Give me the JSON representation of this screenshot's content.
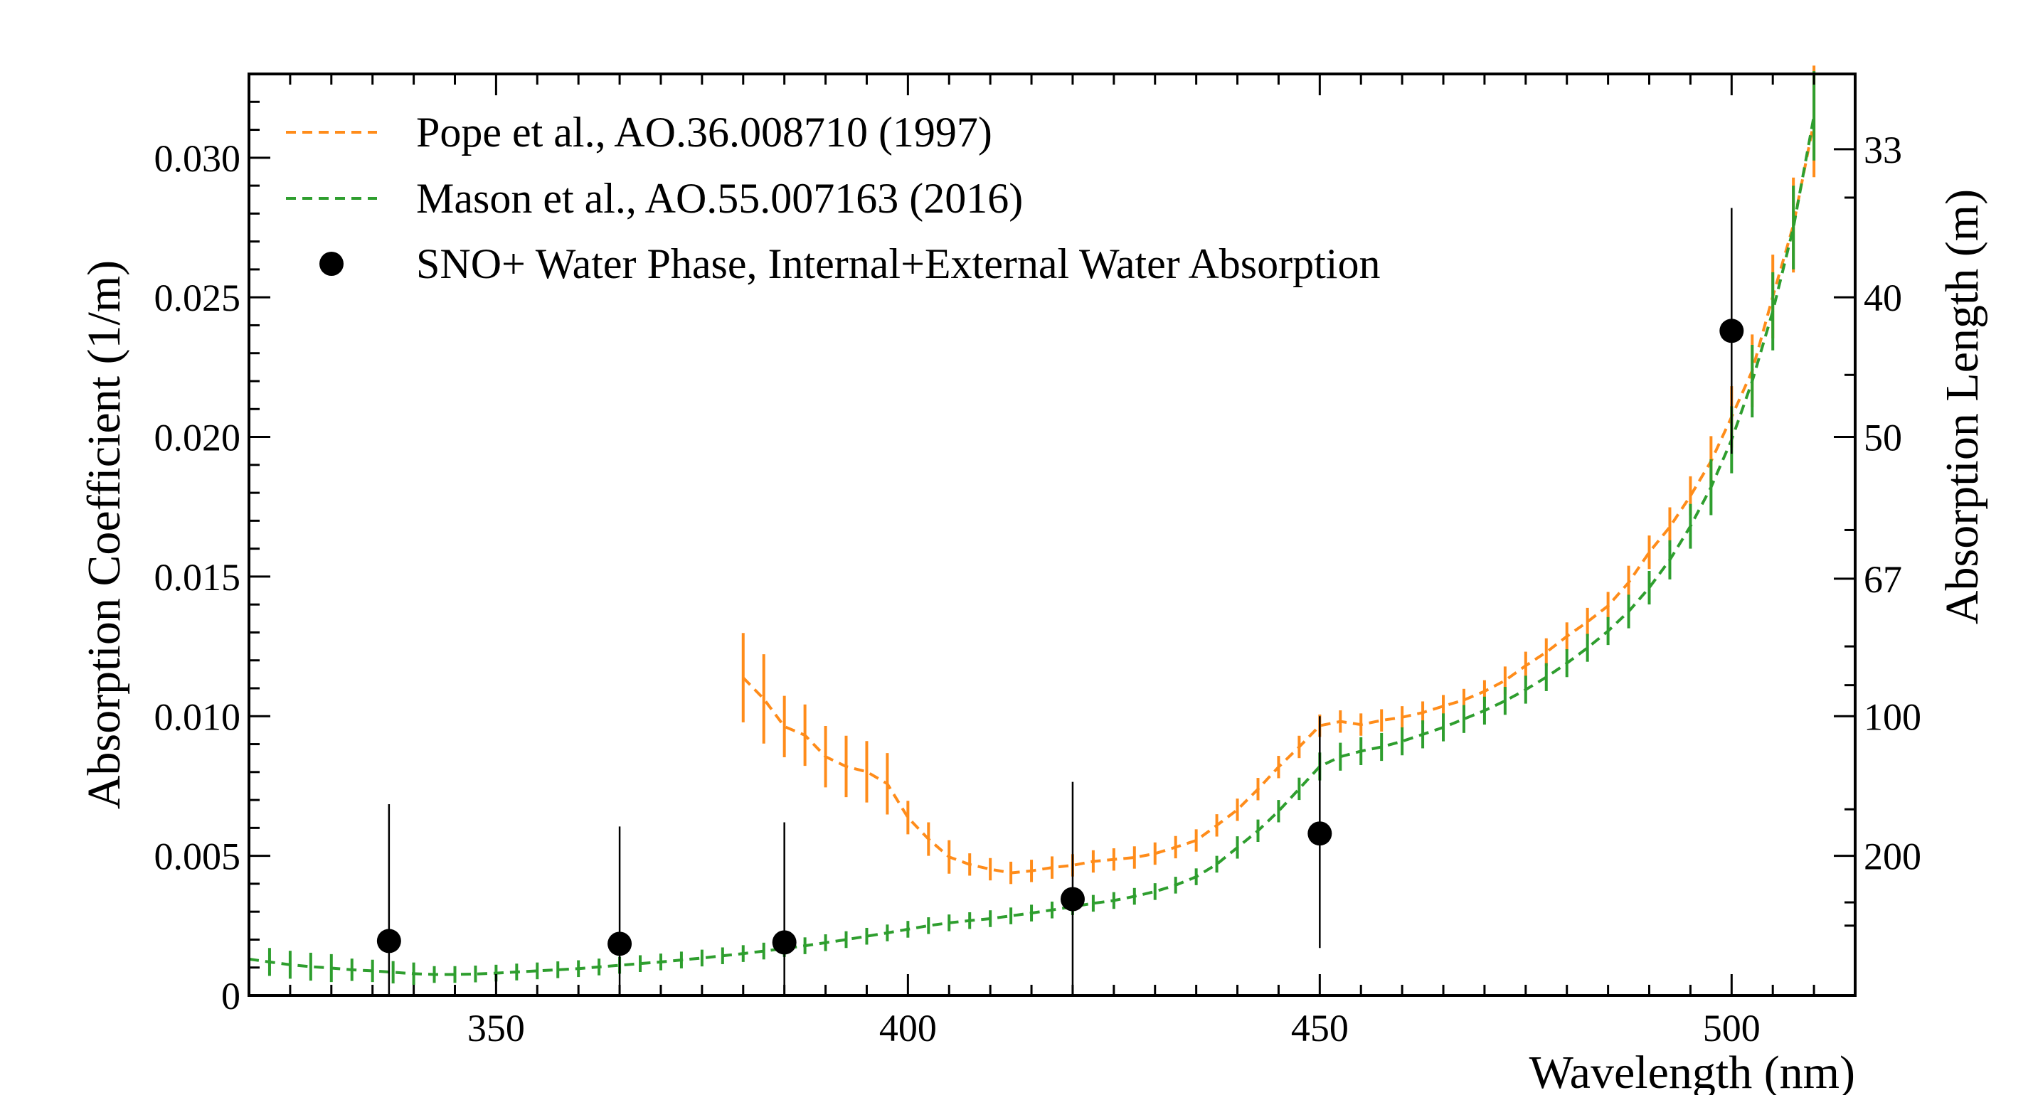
{
  "chart_data": {
    "type": "scatter",
    "xlabel": "Wavelength (nm)",
    "ylabel": "Absorption Coefficient (1/m)",
    "y2label": "Absorption Length (m)",
    "xlim": [
      320,
      515
    ],
    "ylim": [
      0,
      0.033
    ],
    "x_ticks": [
      "350",
      "400",
      "450",
      "500"
    ],
    "y_ticks": [
      "0",
      "0.005",
      "0.010",
      "0.015",
      "0.020",
      "0.025",
      "0.030"
    ],
    "y2_ticks": [
      "33",
      "40",
      "50",
      "67",
      "100",
      "200"
    ],
    "legend_position": "top-left",
    "series": [
      {
        "name": "Pope et al., AO.36.008710 (1997)",
        "style": "dashed-line-with-errorbars",
        "color": "#ff8c1a",
        "x": [
          380,
          382.5,
          385,
          387.5,
          390,
          392.5,
          395,
          397.5,
          400,
          402.5,
          405,
          407.5,
          410,
          412.5,
          415,
          417.5,
          420,
          422.5,
          425,
          427.5,
          430,
          432.5,
          435,
          437.5,
          440,
          442.5,
          445,
          447.5,
          450,
          452.5,
          455,
          457.5,
          460,
          462.5,
          465,
          467.5,
          470,
          472.5,
          475,
          477.5,
          480,
          482.5,
          485,
          487.5,
          490,
          492.5,
          495,
          497.5,
          500,
          502.5,
          505,
          507.5,
          510
        ],
        "y": [
          0.01138,
          0.01062,
          0.00963,
          0.00932,
          0.00855,
          0.0082,
          0.00801,
          0.00758,
          0.00637,
          0.0056,
          0.00496,
          0.00469,
          0.00452,
          0.00439,
          0.00446,
          0.00458,
          0.00466,
          0.0048,
          0.00487,
          0.00494,
          0.00508,
          0.00531,
          0.00555,
          0.00609,
          0.00665,
          0.00739,
          0.00818,
          0.0089,
          0.00966,
          0.00981,
          0.0097,
          0.00985,
          0.00996,
          0.01013,
          0.01036,
          0.01058,
          0.01089,
          0.01128,
          0.01181,
          0.01229,
          0.01286,
          0.01338,
          0.01395,
          0.01479,
          0.01587,
          0.01678,
          0.01789,
          0.01913,
          0.02072,
          0.02237,
          0.02503,
          0.02759,
          0.0313
        ],
        "err": [
          0.0016,
          0.0016,
          0.0011,
          0.0011,
          0.0011,
          0.0011,
          0.0011,
          0.0011,
          0.0006,
          0.0006,
          0.0006,
          0.0004,
          0.0004,
          0.0004,
          0.0004,
          0.0004,
          0.0004,
          0.0004,
          0.0004,
          0.0004,
          0.0004,
          0.0004,
          0.0004,
          0.0004,
          0.0004,
          0.0004,
          0.0004,
          0.0004,
          0.0004,
          0.0004,
          0.0004,
          0.0004,
          0.0004,
          0.0004,
          0.0004,
          0.0004,
          0.0004,
          0.0005,
          0.0005,
          0.0005,
          0.0005,
          0.0005,
          0.0005,
          0.0006,
          0.0006,
          0.0007,
          0.0007,
          0.0009,
          0.0011,
          0.0013,
          0.0015,
          0.0017,
          0.002
        ]
      },
      {
        "name": "Mason et al., AO.55.007163 (2016)",
        "style": "dashed-line-with-errorbars",
        "color": "#2e9e2e",
        "x": [
          320,
          322.5,
          325,
          327.5,
          330,
          332.5,
          335,
          337.5,
          340,
          342.5,
          345,
          347.5,
          350,
          352.5,
          355,
          357.5,
          360,
          362.5,
          365,
          367.5,
          370,
          372.5,
          375,
          377.5,
          380,
          382.5,
          385,
          387.5,
          390,
          392.5,
          395,
          397.5,
          400,
          402.5,
          405,
          407.5,
          410,
          412.5,
          415,
          417.5,
          420,
          422.5,
          425,
          427.5,
          430,
          432.5,
          435,
          437.5,
          440,
          442.5,
          445,
          447.5,
          450,
          452.5,
          455,
          457.5,
          460,
          462.5,
          465,
          467.5,
          470,
          472.5,
          475,
          477.5,
          480,
          482.5,
          485,
          487.5,
          490,
          492.5,
          495,
          497.5,
          500,
          502.5,
          505,
          507.5,
          510
        ],
        "y": [
          0.0013,
          0.0012,
          0.0011,
          0.00103,
          0.00098,
          0.00092,
          0.00088,
          0.00083,
          0.00078,
          0.00075,
          0.00075,
          0.00077,
          0.0008,
          0.00084,
          0.00088,
          0.00092,
          0.00096,
          0.00102,
          0.00108,
          0.00114,
          0.0012,
          0.00127,
          0.00134,
          0.00142,
          0.0015,
          0.00159,
          0.00168,
          0.00178,
          0.00189,
          0.002,
          0.00212,
          0.00224,
          0.00237,
          0.0025,
          0.0026,
          0.00268,
          0.00275,
          0.00285,
          0.00295,
          0.00306,
          0.00318,
          0.0033,
          0.0034,
          0.00355,
          0.00372,
          0.00395,
          0.00425,
          0.0047,
          0.0053,
          0.0059,
          0.0066,
          0.0074,
          0.0082,
          0.00855,
          0.00875,
          0.0089,
          0.0091,
          0.00935,
          0.0096,
          0.0099,
          0.0102,
          0.01055,
          0.01095,
          0.0114,
          0.0119,
          0.01245,
          0.01305,
          0.01375,
          0.0146,
          0.0156,
          0.0168,
          0.0182,
          0.0199,
          0.022,
          0.0245,
          0.0275,
          0.0315
        ],
        "err": [
          0.0005,
          0.0005,
          0.0005,
          0.0005,
          0.0005,
          0.0004,
          0.0004,
          0.0004,
          0.0004,
          0.0003,
          0.0003,
          0.0003,
          0.0003,
          0.0003,
          0.0003,
          0.0003,
          0.0003,
          0.0003,
          0.0003,
          0.0003,
          0.0003,
          0.0003,
          0.0003,
          0.0003,
          0.0003,
          0.0003,
          0.0003,
          0.0003,
          0.0003,
          0.0003,
          0.0003,
          0.0003,
          0.0003,
          0.0003,
          0.0003,
          0.0003,
          0.0003,
          0.0003,
          0.0003,
          0.0003,
          0.0003,
          0.0003,
          0.0003,
          0.0003,
          0.0003,
          0.0003,
          0.0003,
          0.0003,
          0.0004,
          0.0004,
          0.0004,
          0.0004,
          0.0005,
          0.0005,
          0.0005,
          0.0005,
          0.0005,
          0.0005,
          0.0005,
          0.0005,
          0.0005,
          0.0005,
          0.0005,
          0.0005,
          0.0005,
          0.0005,
          0.0005,
          0.0006,
          0.0006,
          0.0007,
          0.0008,
          0.001,
          0.0012,
          0.0013,
          0.0014,
          0.0015,
          0.0016
        ]
      },
      {
        "name": "SNO+ Water Phase, Internal+External Water Absorption",
        "style": "markers-with-errorbars",
        "color": "#000000",
        "x": [
          337,
          365,
          385,
          420,
          450,
          500
        ],
        "y": [
          0.00195,
          0.00185,
          0.0019,
          0.00345,
          0.0058,
          0.0238
        ],
        "err_low": [
          0.00195,
          0.00185,
          0.0019,
          0.00345,
          0.0041,
          0.0044
        ],
        "err_high": [
          0.0049,
          0.0042,
          0.0043,
          0.0042,
          0.0042,
          0.0044
        ]
      }
    ]
  }
}
